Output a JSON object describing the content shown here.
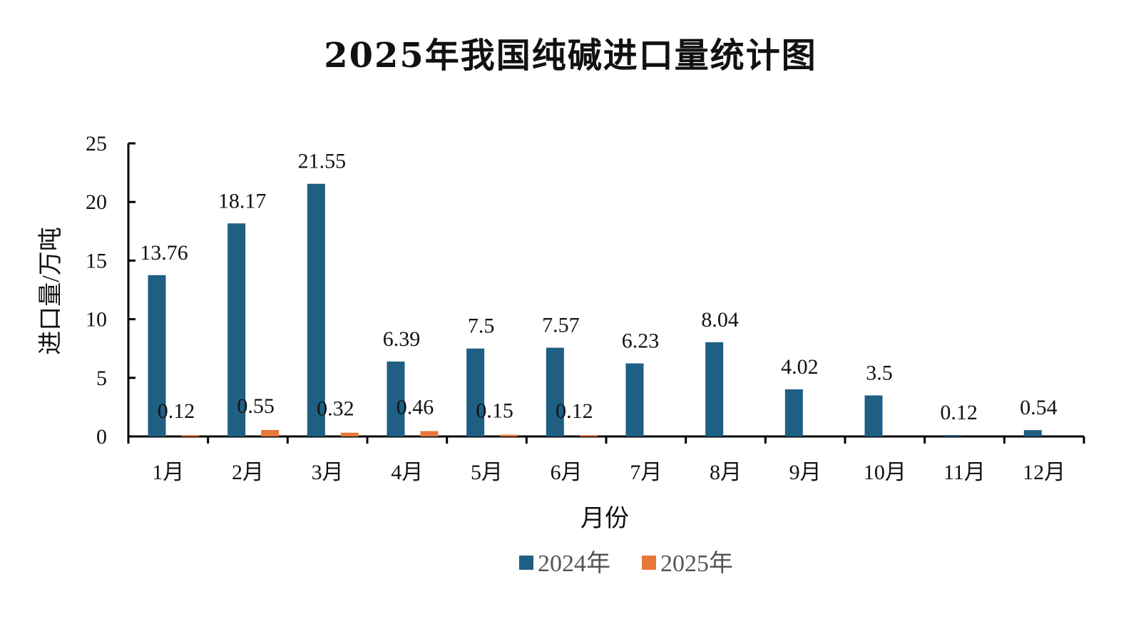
{
  "chart_data": {
    "type": "bar",
    "title": "2025年我国纯碱进口量统计图",
    "xlabel": "月份",
    "ylabel": "进口量/万吨",
    "ylim": [
      0,
      25
    ],
    "yticks": [
      0,
      5,
      10,
      15,
      20,
      25
    ],
    "grid": false,
    "legend_position": "bottom",
    "categories": [
      "1月",
      "2月",
      "3月",
      "4月",
      "5月",
      "6月",
      "7月",
      "8月",
      "9月",
      "10月",
      "11月",
      "12月"
    ],
    "series": [
      {
        "name": "2024年",
        "color": "#1f5f84",
        "values": [
          13.76,
          18.17,
          21.55,
          6.39,
          7.5,
          7.57,
          6.23,
          8.04,
          4.02,
          3.5,
          0.12,
          0.54
        ],
        "labels": [
          "13.76",
          "18.17",
          "21.55",
          "6.39",
          "7.5",
          "7.57",
          "6.23",
          "8.04",
          "4.02",
          "3.5",
          "0.12",
          "0.54"
        ]
      },
      {
        "name": "2025年",
        "color": "#e8773a",
        "values": [
          0.12,
          0.55,
          0.32,
          0.46,
          0.15,
          0.12,
          null,
          null,
          null,
          null,
          null,
          null
        ],
        "labels": [
          "0.12",
          "0.55",
          "0.32",
          "0.46",
          "0.15",
          "0.12",
          "",
          "",
          "",
          "",
          "",
          ""
        ]
      }
    ]
  }
}
